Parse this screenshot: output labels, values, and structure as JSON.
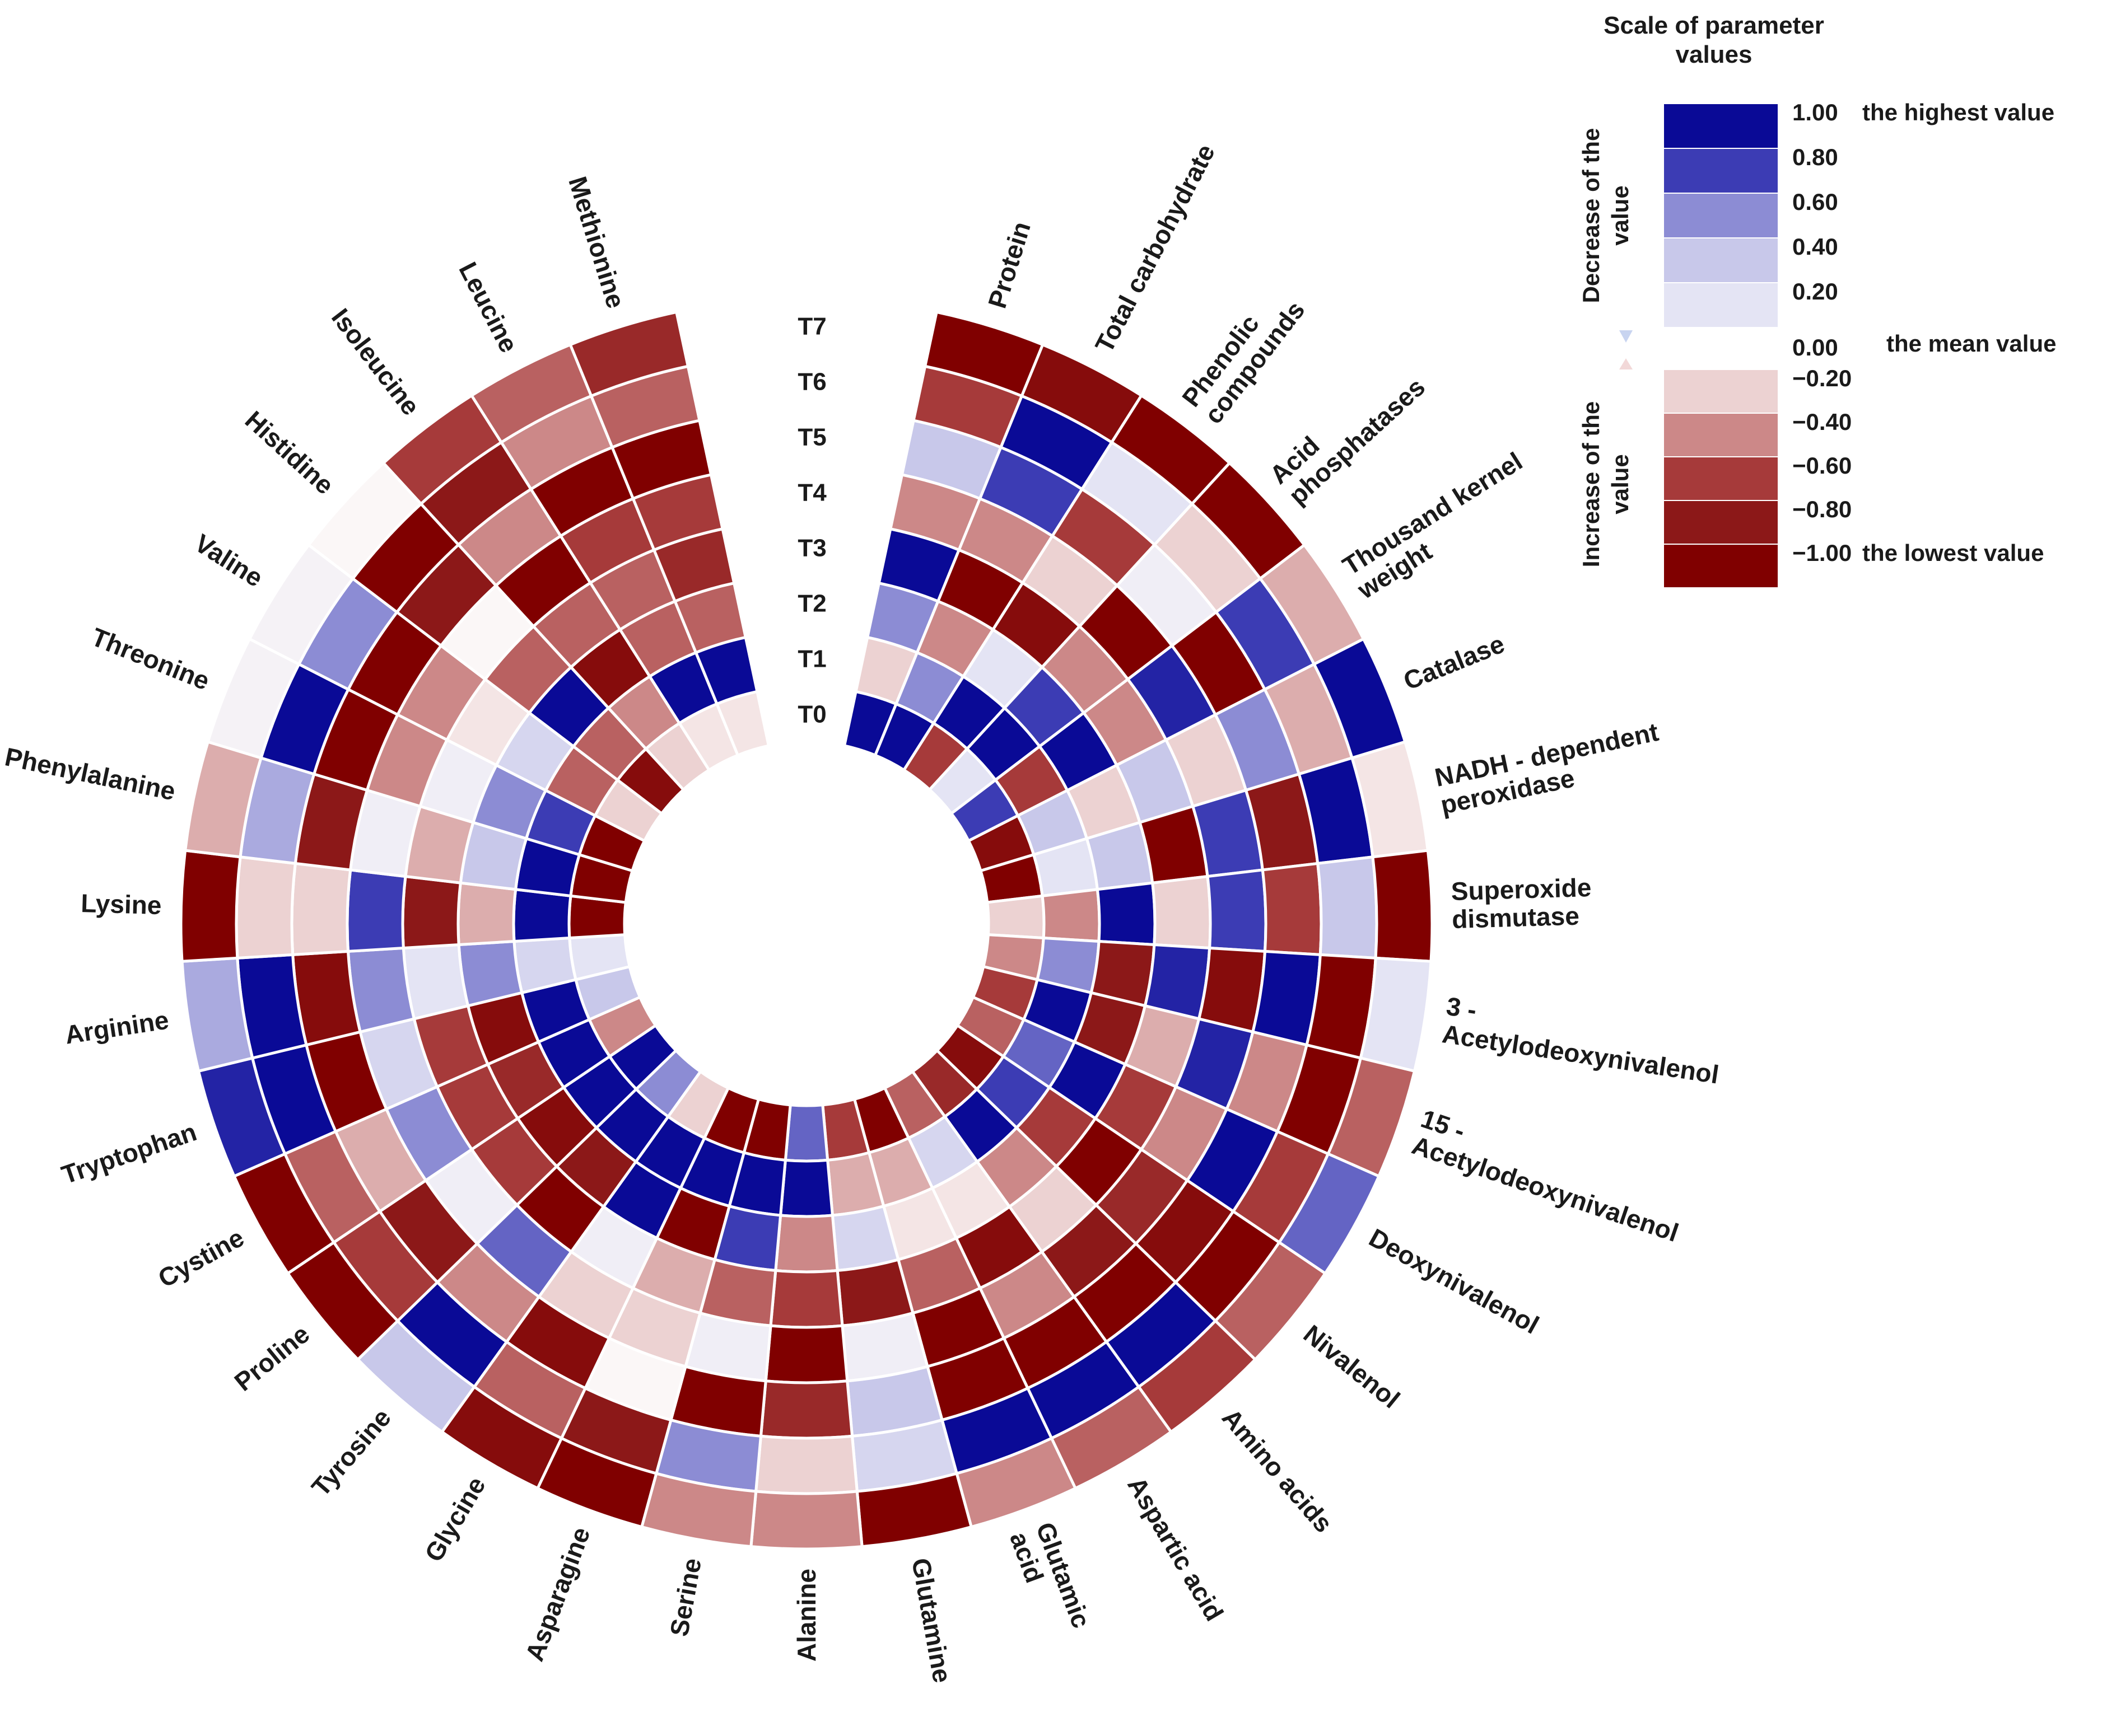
{
  "chart_data": {
    "type": "heatmap",
    "subtype": "circular-heatmap",
    "rings": [
      "T0",
      "T1",
      "T2",
      "T3",
      "T4",
      "T5",
      "T6",
      "T7"
    ],
    "sectors": [
      {
        "name": "Protein",
        "lines": [
          "Protein"
        ],
        "values": [
          1.0,
          -0.2,
          0.6,
          1.0,
          -0.4,
          0.4,
          -0.6,
          -1.0
        ]
      },
      {
        "name": "Total carbohydrate",
        "lines": [
          "Total carbohydrate"
        ],
        "values": [
          1.0,
          0.6,
          -0.4,
          -1.0,
          -0.4,
          0.8,
          1.0,
          -0.9
        ]
      },
      {
        "name": "Phenolic compounds",
        "lines": [
          "Phenolic",
          "compounds"
        ],
        "values": [
          -0.6,
          1.0,
          0.2,
          -0.9,
          -0.2,
          -0.6,
          0.2,
          -1.0
        ]
      },
      {
        "name": "Acid phosphatases",
        "lines": [
          "Acid",
          "phosphatases"
        ],
        "values": [
          0.2,
          1.0,
          0.8,
          -0.4,
          -1.0,
          0.1,
          -0.2,
          -1.0
        ]
      },
      {
        "name": "Thousand kernel weight",
        "lines": [
          "Thousand kernel",
          "weight"
        ],
        "values": [
          0.8,
          -0.6,
          1.0,
          -0.4,
          0.9,
          -1.0,
          0.8,
          -0.3
        ]
      },
      {
        "name": "Catalase",
        "lines": [
          "Catalase"
        ],
        "values": [
          -0.9,
          0.4,
          -0.2,
          0.4,
          -0.2,
          0.6,
          -0.3,
          1.0
        ]
      },
      {
        "name": "NADH - dependent peroxidase",
        "lines": [
          "NADH - dependent",
          "peroxidase"
        ],
        "values": [
          -1.0,
          0.2,
          0.4,
          -1.0,
          0.8,
          -0.8,
          1.0,
          -0.1
        ]
      },
      {
        "name": "Superoxide dismutase",
        "lines": [
          "Superoxide",
          "dismutase"
        ],
        "values": [
          -0.2,
          -0.4,
          1.0,
          -0.2,
          0.8,
          -0.6,
          0.4,
          -1.0
        ]
      },
      {
        "name": "3 - Acetylodeoxynivalenol",
        "lines": [
          "3 -",
          "Acetylodeoxynivalenol"
        ],
        "values": [
          -0.4,
          0.6,
          -0.8,
          0.9,
          -0.9,
          1.0,
          -1.0,
          0.2
        ]
      },
      {
        "name": "15 - Acetylodeoxynivalenol",
        "lines": [
          "15 -",
          "Acetylodeoxynivalenol"
        ],
        "values": [
          -0.6,
          1.0,
          -0.8,
          -0.3,
          0.9,
          -0.4,
          -1.0,
          -0.5
        ]
      },
      {
        "name": "Deoxynivalenol",
        "lines": [
          "Deoxynivalenol"
        ],
        "values": [
          -0.5,
          0.7,
          1.0,
          -0.6,
          -0.4,
          1.0,
          -0.6,
          0.7
        ]
      },
      {
        "name": "Nivalenol",
        "lines": [
          "Nivalenol"
        ],
        "values": [
          -0.9,
          0.8,
          -0.6,
          -1.0,
          -0.7,
          -0.9,
          -1.0,
          -0.5
        ]
      },
      {
        "name": "Amino acids",
        "lines": [
          "Amino acids"
        ],
        "values": [
          -0.7,
          1.0,
          -0.4,
          -0.2,
          -0.8,
          -1.0,
          1.0,
          -0.6
        ]
      },
      {
        "name": "Aspartic acid",
        "lines": [
          "Aspartic acid"
        ],
        "values": [
          -0.5,
          0.3,
          -0.1,
          -0.9,
          -0.4,
          -1.0,
          1.0,
          -0.5
        ]
      },
      {
        "name": "Glutamic acid",
        "lines": [
          "Glutamic",
          "acid"
        ],
        "values": [
          -1.0,
          -0.3,
          -0.1,
          -0.5,
          -1.0,
          -1.0,
          1.0,
          -0.4
        ]
      },
      {
        "name": "Glutamine",
        "lines": [
          "Glutamine"
        ],
        "values": [
          -0.6,
          -0.3,
          0.3,
          -0.8,
          0.1,
          0.4,
          0.3,
          -1.0
        ]
      },
      {
        "name": "Alanine",
        "lines": [
          "Alanine"
        ],
        "values": [
          0.7,
          1.0,
          -0.4,
          -0.6,
          -1.0,
          -0.7,
          -0.2,
          -0.4
        ]
      },
      {
        "name": "Serine",
        "lines": [
          "Serine"
        ],
        "values": [
          -1.0,
          1.0,
          0.8,
          -0.5,
          0.1,
          -1.0,
          0.6,
          -0.4
        ]
      },
      {
        "name": "Asparagine",
        "lines": [
          "Asparagine"
        ],
        "values": [
          -1.0,
          1.0,
          -1.0,
          -0.3,
          -0.2,
          0.0,
          -0.8,
          -1.0
        ]
      },
      {
        "name": "Glycine",
        "lines": [
          "Glycine"
        ],
        "values": [
          -0.2,
          1.0,
          1.0,
          0.1,
          -0.2,
          -0.9,
          -0.5,
          -0.9
        ]
      },
      {
        "name": "Tyrosine",
        "lines": [
          "Tyrosine"
        ],
        "values": [
          0.6,
          1.0,
          -0.8,
          -1.0,
          0.7,
          -0.4,
          1.0,
          0.4
        ]
      },
      {
        "name": "Proline",
        "lines": [
          "Proline"
        ],
        "values": [
          1.0,
          1.0,
          -0.9,
          -0.6,
          0.1,
          -0.8,
          -0.6,
          -1.0
        ]
      },
      {
        "name": "Cystine",
        "lines": [
          "Cystine"
        ],
        "values": [
          -0.4,
          1.0,
          -0.7,
          -0.6,
          0.6,
          -0.3,
          -0.5,
          -1.0
        ]
      },
      {
        "name": "Tryptophan",
        "lines": [
          "Tryptophan"
        ],
        "values": [
          0.4,
          1.0,
          -0.9,
          -0.6,
          0.3,
          -1.0,
          1.0,
          0.9
        ]
      },
      {
        "name": "Arginine",
        "lines": [
          "Arginine"
        ],
        "values": [
          0.2,
          0.3,
          0.6,
          0.2,
          0.6,
          -0.9,
          1.0,
          0.5
        ]
      },
      {
        "name": "Lysine",
        "lines": [
          "Lysine"
        ],
        "values": [
          -1.0,
          1.0,
          -0.3,
          -0.8,
          0.8,
          -0.2,
          -0.2,
          -1.0
        ]
      },
      {
        "name": "Phenylalanine",
        "lines": [
          "Phenylalanine"
        ],
        "values": [
          -1.0,
          1.0,
          0.4,
          -0.3,
          0.1,
          -0.8,
          0.5,
          -0.3
        ]
      },
      {
        "name": "Threonine",
        "lines": [
          "Threonine"
        ],
        "values": [
          -1.0,
          0.8,
          0.6,
          0.1,
          -0.4,
          -1.0,
          1.0,
          0.05
        ]
      },
      {
        "name": "Valine",
        "lines": [
          "Valine"
        ],
        "values": [
          -0.2,
          -0.5,
          0.3,
          -0.1,
          -0.4,
          -1.0,
          0.6,
          0.05
        ]
      },
      {
        "name": "Histidine",
        "lines": [
          "Histidine"
        ],
        "values": [
          -0.9,
          -0.5,
          1.0,
          -0.5,
          0.0,
          -0.8,
          -1.0,
          0.0
        ]
      },
      {
        "name": "Isoleucine",
        "lines": [
          "Isoleucine"
        ],
        "values": [
          -0.2,
          -0.4,
          -0.9,
          -0.5,
          -1.0,
          -0.4,
          -0.8,
          -0.6
        ]
      },
      {
        "name": "Leucine",
        "lines": [
          "Leucine"
        ],
        "values": [
          -0.1,
          1.0,
          -0.5,
          -0.5,
          -0.6,
          -1.0,
          -0.4,
          -0.5
        ]
      },
      {
        "name": "Methionine",
        "lines": [
          "Methionine"
        ],
        "values": [
          -0.1,
          1.0,
          -0.5,
          -0.7,
          -0.6,
          -1.0,
          -0.5,
          -0.7
        ]
      }
    ],
    "legend": {
      "title_lines": [
        "Scale of parameter",
        "values"
      ],
      "decrease_lines": [
        "Decrease of the",
        "value"
      ],
      "increase_lines": [
        "Increase of the",
        "value"
      ],
      "positive": [
        {
          "value": 1.0,
          "label": "1.00",
          "note": "the highest value",
          "color": "#0a0a96"
        },
        {
          "value": 0.8,
          "label": "0.80",
          "note": "",
          "color": "#3c3cb4"
        },
        {
          "value": 0.6,
          "label": "0.60",
          "note": "",
          "color": "#8c8cd4"
        },
        {
          "value": 0.4,
          "label": "0.40",
          "note": "",
          "color": "#c8c8ea"
        },
        {
          "value": 0.2,
          "label": "0.20",
          "note": "",
          "color": "#e4e4f4"
        }
      ],
      "mean": {
        "value": 0.0,
        "label": "0.00",
        "note": "the mean value"
      },
      "negative": [
        {
          "value": -0.2,
          "label": "−0.20",
          "note": "",
          "color": "#ecd2d2"
        },
        {
          "value": -0.4,
          "label": "−0.40",
          "note": "",
          "color": "#cc8888"
        },
        {
          "value": -0.6,
          "label": "−0.60",
          "note": "",
          "color": "#a63a3a"
        },
        {
          "value": -0.8,
          "label": "−0.80",
          "note": "",
          "color": "#8c1818"
        },
        {
          "value": -1.0,
          "label": "−1.00",
          "note": "the lowest value",
          "color": "#800000"
        }
      ]
    }
  }
}
